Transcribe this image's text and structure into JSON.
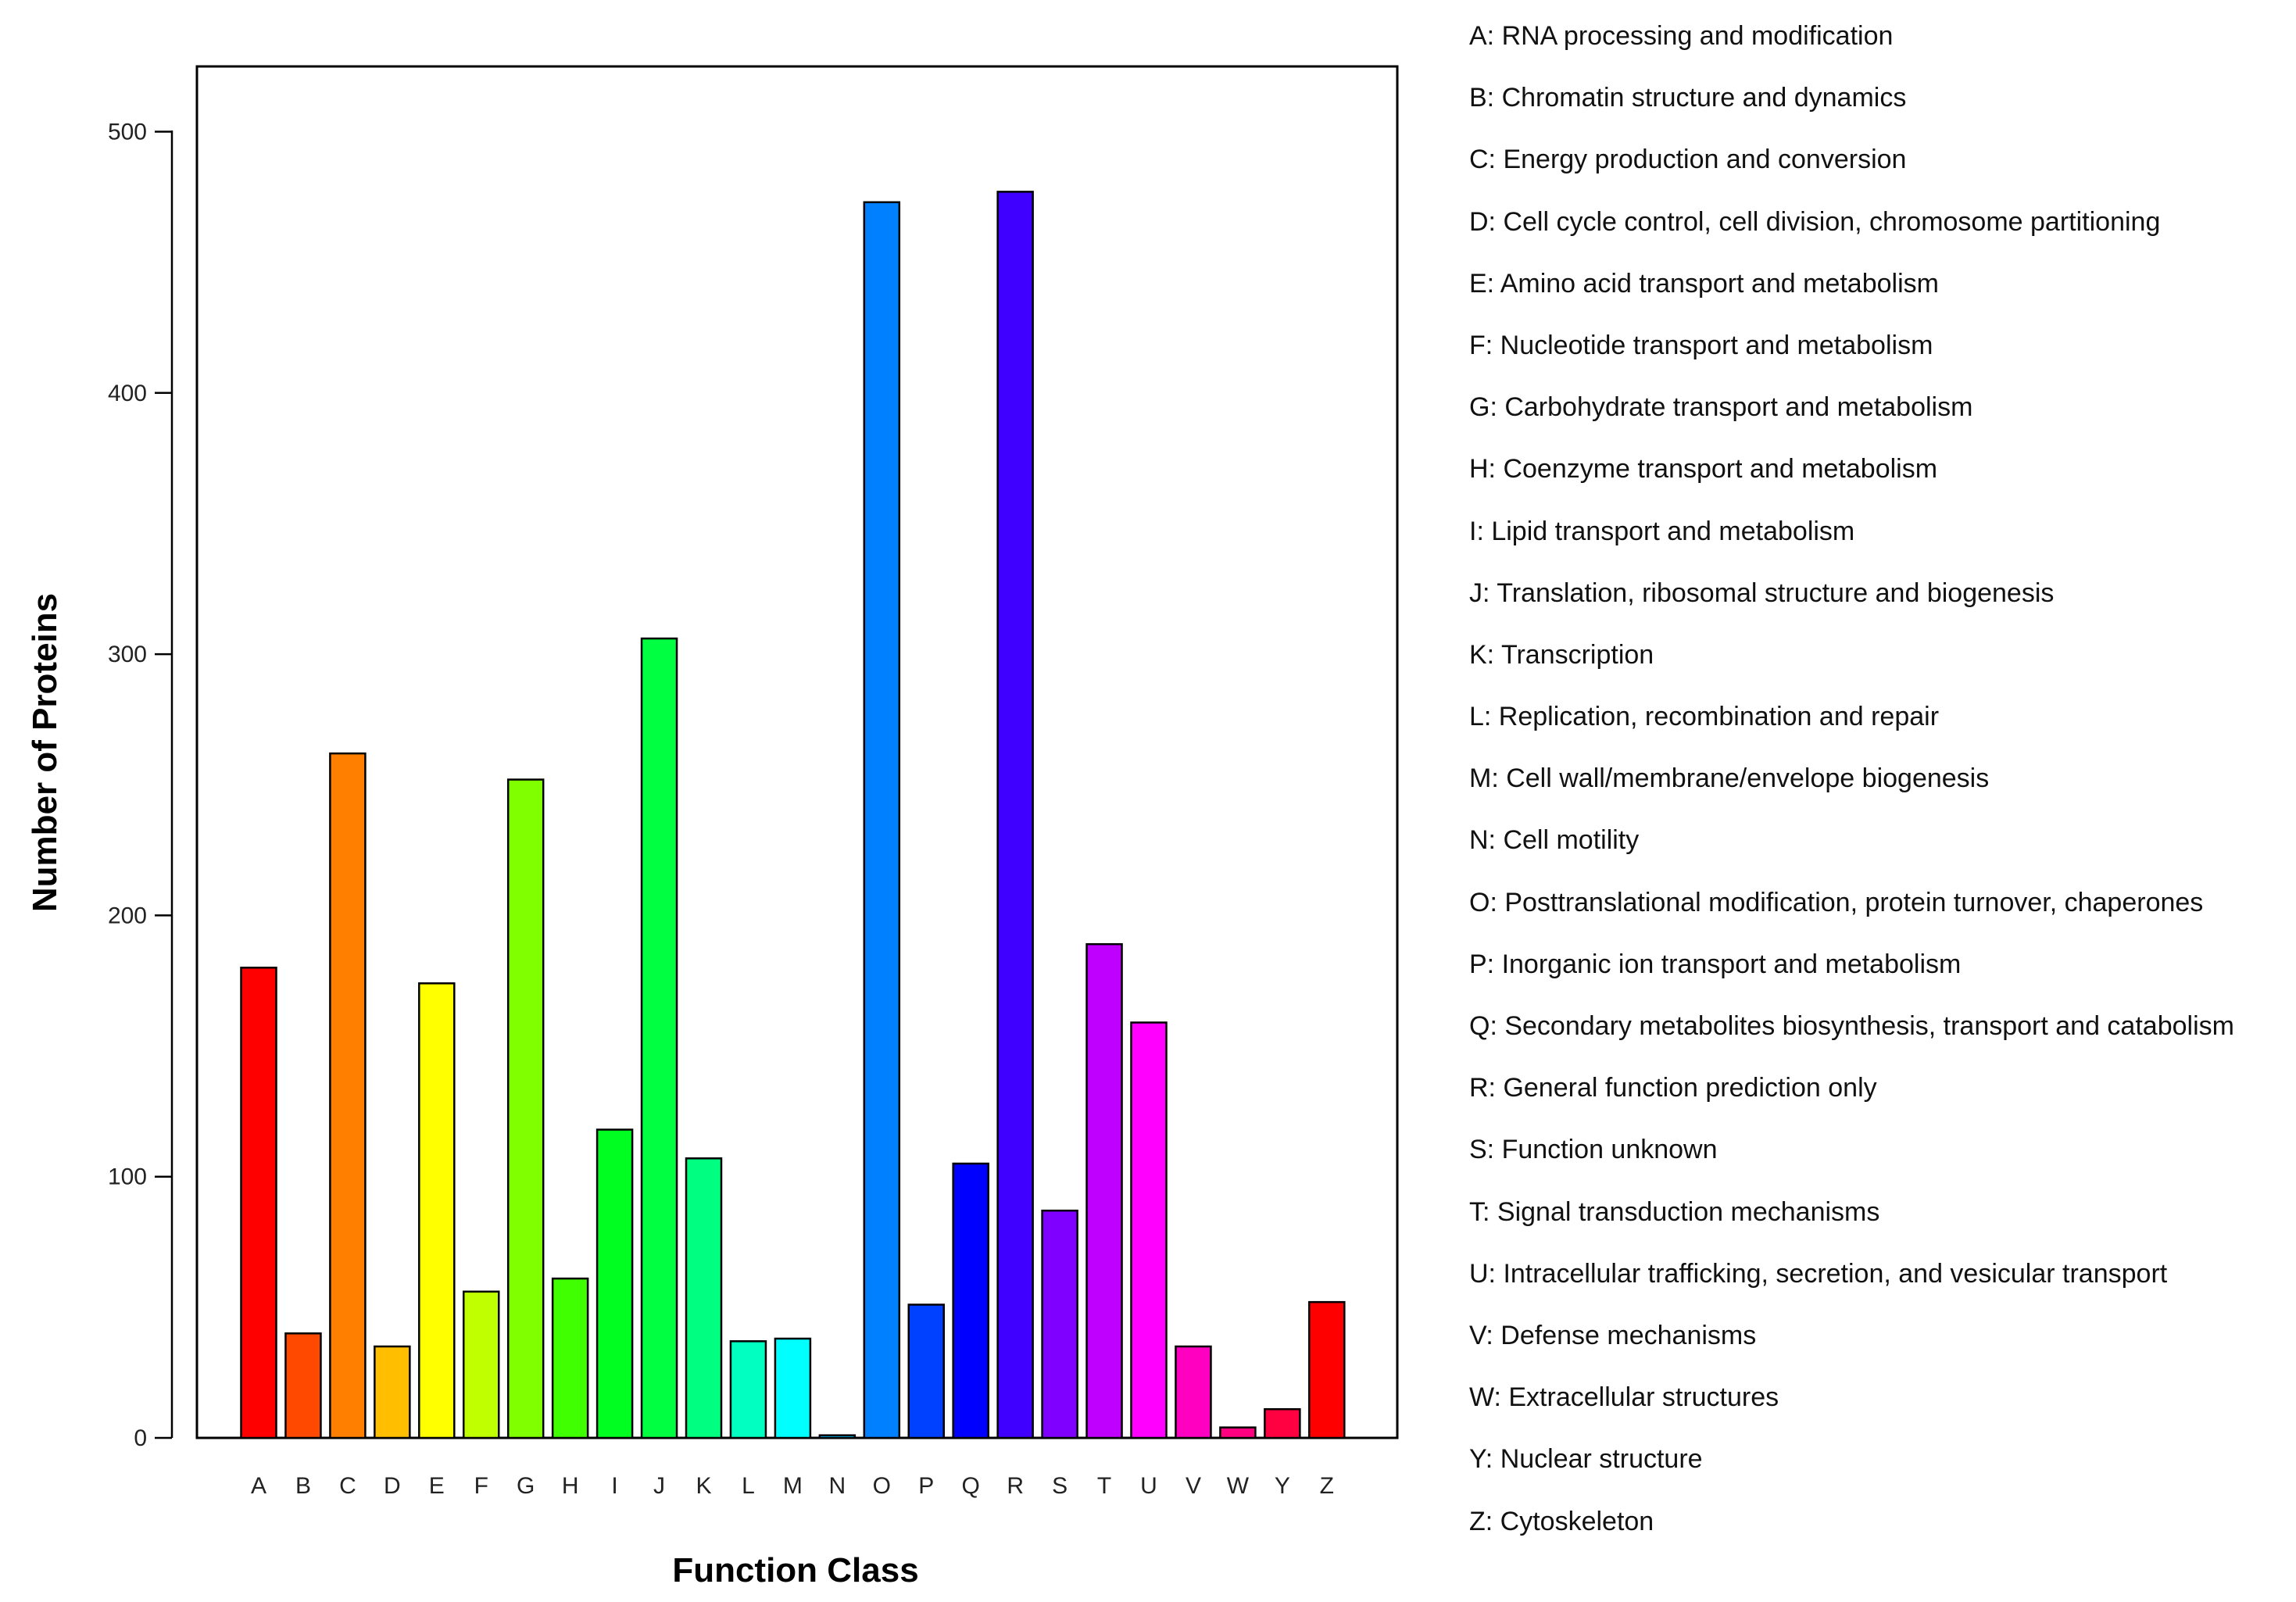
{
  "chart_data": {
    "type": "bar",
    "title": "",
    "xlabel": "Function Class",
    "ylabel": "Number of Proteins",
    "ylim": [
      0,
      525
    ],
    "yticks": [
      0,
      100,
      200,
      300,
      400,
      500
    ],
    "grid": false,
    "categories": [
      "A",
      "B",
      "C",
      "D",
      "E",
      "F",
      "G",
      "H",
      "I",
      "J",
      "K",
      "L",
      "M",
      "N",
      "O",
      "P",
      "Q",
      "R",
      "S",
      "T",
      "U",
      "V",
      "W",
      "Y",
      "Z"
    ],
    "values": [
      180,
      40,
      262,
      35,
      174,
      56,
      252,
      61,
      118,
      306,
      107,
      37,
      38,
      1,
      473,
      51,
      105,
      477,
      87,
      189,
      159,
      35,
      4,
      11,
      52
    ],
    "colors": [
      "#ff0000",
      "#ff4800",
      "#ff8000",
      "#ffbf00",
      "#ffff00",
      "#bfff00",
      "#80ff00",
      "#40ff00",
      "#00ff20",
      "#00ff40",
      "#00ff80",
      "#00ffc0",
      "#00ffff",
      "#00c0ff",
      "#0080ff",
      "#0040ff",
      "#0000ff",
      "#4000ff",
      "#8000ff",
      "#c000ff",
      "#ff00ff",
      "#ff00c0",
      "#ff0080",
      "#ff0040",
      "#ff0000"
    ],
    "legend_position": "right",
    "legend": [
      "A: RNA processing and modification",
      "B: Chromatin structure and dynamics",
      "C: Energy production and conversion",
      "D: Cell cycle control, cell division, chromosome partitioning",
      "E: Amino acid transport and metabolism",
      "F: Nucleotide transport and metabolism",
      "G: Carbohydrate transport and metabolism",
      "H: Coenzyme transport and metabolism",
      "I: Lipid transport and metabolism",
      "J: Translation, ribosomal structure and biogenesis",
      "K: Transcription",
      "L: Replication, recombination and repair",
      "M: Cell wall/membrane/envelope biogenesis",
      "N: Cell motility",
      "O: Posttranslational modification, protein turnover, chaperones",
      "P: Inorganic ion transport and metabolism",
      "Q: Secondary metabolites biosynthesis, transport and catabolism",
      "R: General function prediction only",
      "S: Function unknown",
      "T: Signal transduction mechanisms",
      "U: Intracellular trafficking, secretion, and vesicular transport",
      "V: Defense mechanisms",
      "W: Extracellular structures",
      "Y: Nuclear structure",
      "Z: Cytoskeleton"
    ]
  }
}
